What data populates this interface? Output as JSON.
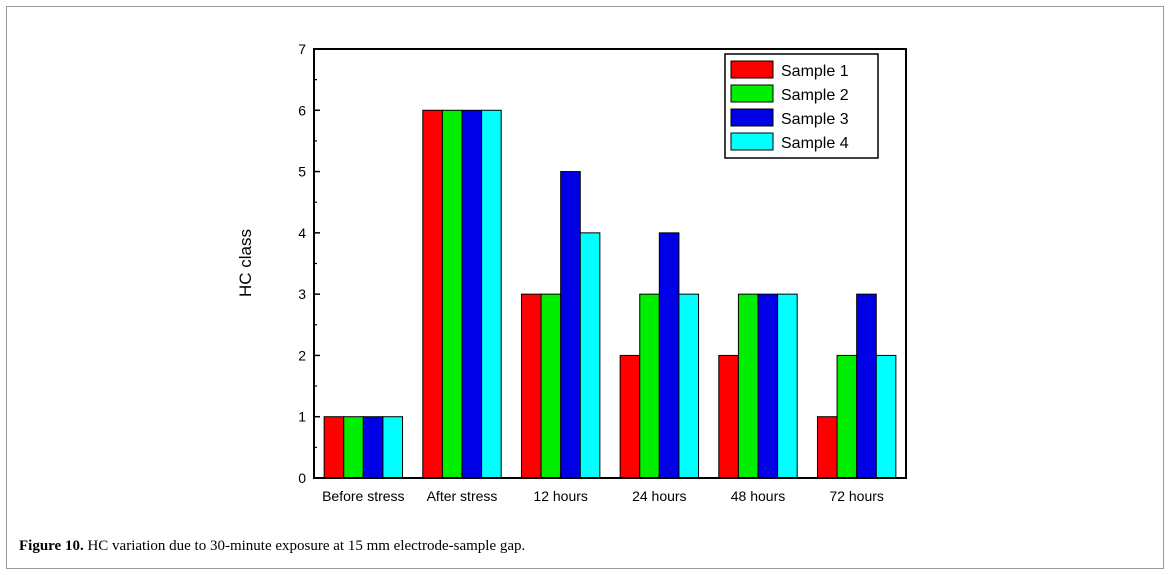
{
  "caption": {
    "label": "Figure 10.",
    "text": "HC variation due to 30-minute exposure at 15 mm electrode-sample gap."
  },
  "chart_data": {
    "type": "bar",
    "categories": [
      "Before stress",
      "After stress",
      "12 hours",
      "24 hours",
      "48 hours",
      "72 hours"
    ],
    "series": [
      {
        "name": "Sample 1",
        "color": "#ff0000",
        "values": [
          1,
          6,
          3,
          2,
          2,
          1
        ]
      },
      {
        "name": "Sample 2",
        "color": "#00ee00",
        "values": [
          1,
          6,
          3,
          3,
          3,
          2
        ]
      },
      {
        "name": "Sample 3",
        "color": "#0000e6",
        "values": [
          1,
          6,
          5,
          4,
          3,
          3
        ]
      },
      {
        "name": "Sample 4",
        "color": "#00ffff",
        "values": [
          1,
          6,
          4,
          3,
          3,
          2
        ]
      }
    ],
    "title": "",
    "xlabel": "",
    "ylabel": "HC class",
    "ylim": [
      0,
      7
    ],
    "yticks": [
      0,
      1,
      2,
      3,
      4,
      5,
      6,
      7
    ],
    "grid": false,
    "legend": "top-right"
  }
}
